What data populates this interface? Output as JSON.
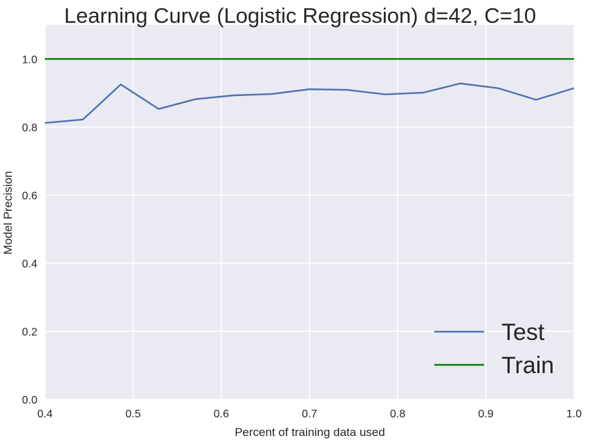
{
  "chart_data": {
    "type": "line",
    "title": "Learning Curve (Logistic Regression) d=42, C=10",
    "xlabel": "Percent of training data used",
    "ylabel": "Model Precision",
    "xlim": [
      0.4,
      1.0
    ],
    "ylim": [
      0.0,
      1.1
    ],
    "x_ticks": [
      "0.4",
      "0.5",
      "0.6",
      "0.7",
      "0.8",
      "0.9",
      "1.0"
    ],
    "y_ticks": [
      "0.0",
      "0.2",
      "0.4",
      "0.6",
      "0.8",
      "1.0"
    ],
    "grid": true,
    "legend_position": "bottom-right",
    "x": [
      0.4,
      0.443,
      0.486,
      0.529,
      0.571,
      0.614,
      0.657,
      0.7,
      0.743,
      0.786,
      0.829,
      0.871,
      0.914,
      0.957,
      1.0
    ],
    "series": [
      {
        "name": "Test",
        "color": "#4c72b0",
        "values": [
          0.812,
          0.822,
          0.925,
          0.853,
          0.882,
          0.893,
          0.897,
          0.911,
          0.909,
          0.896,
          0.901,
          0.928,
          0.914,
          0.88,
          0.914
        ]
      },
      {
        "name": "Train",
        "color": "#008000",
        "values": [
          1.0,
          1.0,
          1.0,
          1.0,
          1.0,
          1.0,
          1.0,
          1.0,
          1.0,
          1.0,
          1.0,
          1.0,
          1.0,
          1.0,
          1.0
        ]
      }
    ],
    "colors": {
      "plot_background": "#eaeaf2",
      "grid": "#ffffff"
    }
  }
}
